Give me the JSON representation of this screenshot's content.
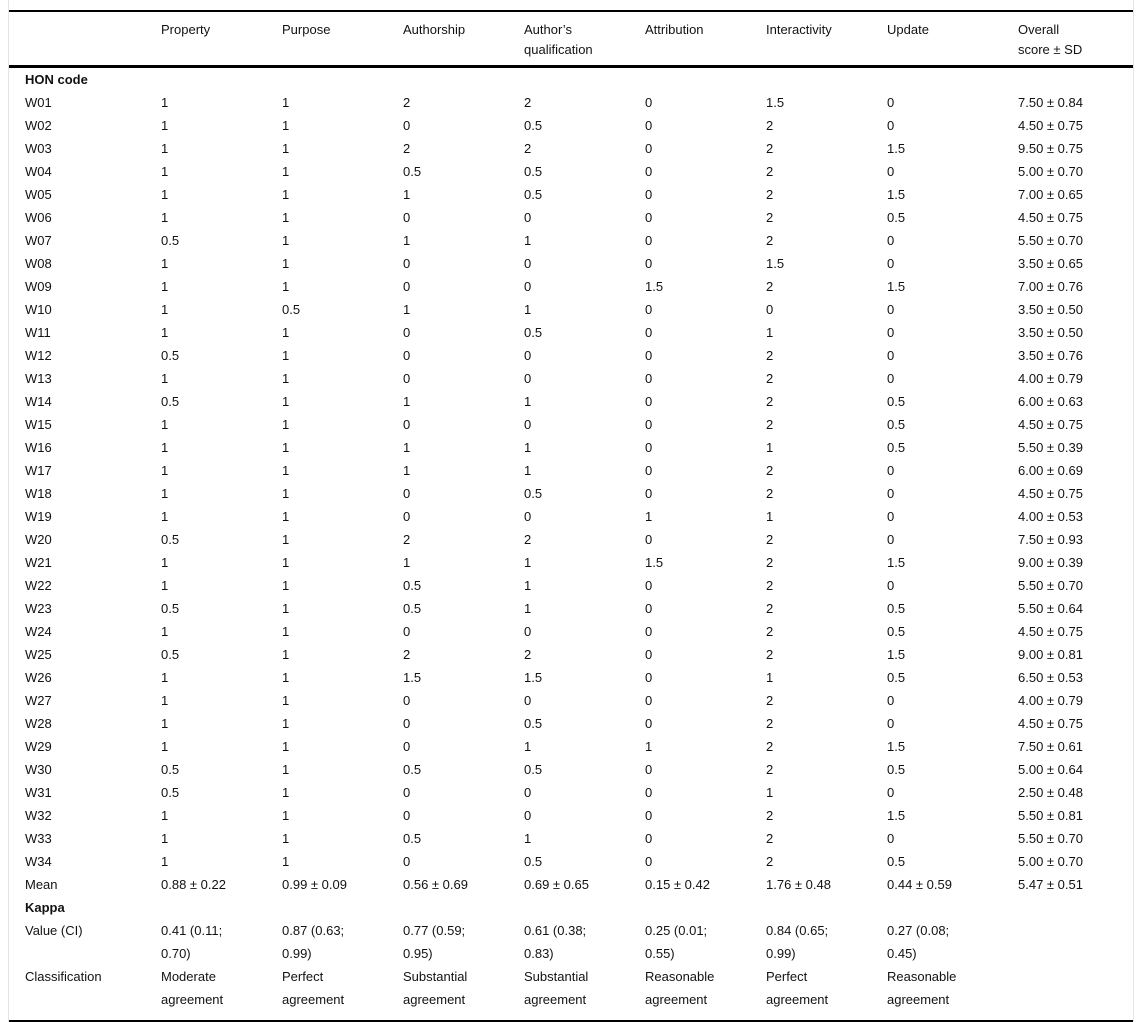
{
  "table": {
    "columns": [
      "Property",
      "Purpose",
      "Authorship",
      "Author’s\nqualification",
      "Attribution",
      "Interactivity",
      "Update",
      "Overall\nscore ± SD"
    ],
    "body": [
      {
        "type": "section",
        "label": "HON code"
      },
      {
        "type": "data",
        "label": "W01",
        "values": [
          "1",
          "1",
          "2",
          "2",
          "0",
          "1.5",
          "0",
          "7.50 ± 0.84"
        ]
      },
      {
        "type": "data",
        "label": "W02",
        "values": [
          "1",
          "1",
          "0",
          "0.5",
          "0",
          "2",
          "0",
          "4.50 ± 0.75"
        ]
      },
      {
        "type": "data",
        "label": "W03",
        "values": [
          "1",
          "1",
          "2",
          "2",
          "0",
          "2",
          "1.5",
          "9.50 ± 0.75"
        ]
      },
      {
        "type": "data",
        "label": "W04",
        "values": [
          "1",
          "1",
          "0.5",
          "0.5",
          "0",
          "2",
          "0",
          "5.00 ± 0.70"
        ]
      },
      {
        "type": "data",
        "label": "W05",
        "values": [
          "1",
          "1",
          "1",
          "0.5",
          "0",
          "2",
          "1.5",
          "7.00 ± 0.65"
        ]
      },
      {
        "type": "data",
        "label": "W06",
        "values": [
          "1",
          "1",
          "0",
          "0",
          "0",
          "2",
          "0.5",
          "4.50 ± 0.75"
        ]
      },
      {
        "type": "data",
        "label": "W07",
        "values": [
          "0.5",
          "1",
          "1",
          "1",
          "0",
          "2",
          "0",
          "5.50 ± 0.70"
        ]
      },
      {
        "type": "data",
        "label": "W08",
        "values": [
          "1",
          "1",
          "0",
          "0",
          "0",
          "1.5",
          "0",
          "3.50 ± 0.65"
        ]
      },
      {
        "type": "data",
        "label": "W09",
        "values": [
          "1",
          "1",
          "0",
          "0",
          "1.5",
          "2",
          "1.5",
          "7.00 ± 0.76"
        ]
      },
      {
        "type": "data",
        "label": "W10",
        "values": [
          "1",
          "0.5",
          "1",
          "1",
          "0",
          "0",
          "0",
          "3.50 ± 0.50"
        ]
      },
      {
        "type": "data",
        "label": "W11",
        "values": [
          "1",
          "1",
          "0",
          "0.5",
          "0",
          "1",
          "0",
          "3.50 ± 0.50"
        ]
      },
      {
        "type": "data",
        "label": "W12",
        "values": [
          "0.5",
          "1",
          "0",
          "0",
          "0",
          "2",
          "0",
          "3.50 ± 0.76"
        ]
      },
      {
        "type": "data",
        "label": "W13",
        "values": [
          "1",
          "1",
          "0",
          "0",
          "0",
          "2",
          "0",
          "4.00 ± 0.79"
        ]
      },
      {
        "type": "data",
        "label": "W14",
        "values": [
          "0.5",
          "1",
          "1",
          "1",
          "0",
          "2",
          "0.5",
          "6.00 ± 0.63"
        ]
      },
      {
        "type": "data",
        "label": "W15",
        "values": [
          "1",
          "1",
          "0",
          "0",
          "0",
          "2",
          "0.5",
          "4.50 ± 0.75"
        ]
      },
      {
        "type": "data",
        "label": "W16",
        "values": [
          "1",
          "1",
          "1",
          "1",
          "0",
          "1",
          "0.5",
          "5.50 ± 0.39"
        ]
      },
      {
        "type": "data",
        "label": "W17",
        "values": [
          "1",
          "1",
          "1",
          "1",
          "0",
          "2",
          "0",
          "6.00 ± 0.69"
        ]
      },
      {
        "type": "data",
        "label": "W18",
        "values": [
          "1",
          "1",
          "0",
          "0.5",
          "0",
          "2",
          "0",
          "4.50 ± 0.75"
        ]
      },
      {
        "type": "data",
        "label": "W19",
        "values": [
          "1",
          "1",
          "0",
          "0",
          "1",
          "1",
          "0",
          "4.00 ± 0.53"
        ]
      },
      {
        "type": "data",
        "label": "W20",
        "values": [
          "0.5",
          "1",
          "2",
          "2",
          "0",
          "2",
          "0",
          "7.50 ± 0.93"
        ]
      },
      {
        "type": "data",
        "label": "W21",
        "values": [
          "1",
          "1",
          "1",
          "1",
          "1.5",
          "2",
          "1.5",
          "9.00 ± 0.39"
        ]
      },
      {
        "type": "data",
        "label": "W22",
        "values": [
          "1",
          "1",
          "0.5",
          "1",
          "0",
          "2",
          "0",
          "5.50 ± 0.70"
        ]
      },
      {
        "type": "data",
        "label": "W23",
        "values": [
          "0.5",
          "1",
          "0.5",
          "1",
          "0",
          "2",
          "0.5",
          "5.50 ± 0.64"
        ]
      },
      {
        "type": "data",
        "label": "W24",
        "values": [
          "1",
          "1",
          "0",
          "0",
          "0",
          "2",
          "0.5",
          "4.50 ± 0.75"
        ]
      },
      {
        "type": "data",
        "label": "W25",
        "values": [
          "0.5",
          "1",
          "2",
          "2",
          "0",
          "2",
          "1.5",
          "9.00 ± 0.81"
        ]
      },
      {
        "type": "data",
        "label": "W26",
        "values": [
          "1",
          "1",
          "1.5",
          "1.5",
          "0",
          "1",
          "0.5",
          "6.50 ± 0.53"
        ]
      },
      {
        "type": "data",
        "label": "W27",
        "values": [
          "1",
          "1",
          "0",
          "0",
          "0",
          "2",
          "0",
          "4.00 ± 0.79"
        ]
      },
      {
        "type": "data",
        "label": "W28",
        "values": [
          "1",
          "1",
          "0",
          "0.5",
          "0",
          "2",
          "0",
          "4.50 ± 0.75"
        ]
      },
      {
        "type": "data",
        "label": "W29",
        "values": [
          "1",
          "1",
          "0",
          "1",
          "1",
          "2",
          "1.5",
          "7.50 ± 0.61"
        ]
      },
      {
        "type": "data",
        "label": "W30",
        "values": [
          "0.5",
          "1",
          "0.5",
          "0.5",
          "0",
          "2",
          "0.5",
          "5.00 ± 0.64"
        ]
      },
      {
        "type": "data",
        "label": "W31",
        "values": [
          "0.5",
          "1",
          "0",
          "0",
          "0",
          "1",
          "0",
          "2.50 ± 0.48"
        ]
      },
      {
        "type": "data",
        "label": "W32",
        "values": [
          "1",
          "1",
          "0",
          "0",
          "0",
          "2",
          "1.5",
          "5.50 ± 0.81"
        ]
      },
      {
        "type": "data",
        "label": "W33",
        "values": [
          "1",
          "1",
          "0.5",
          "1",
          "0",
          "2",
          "0",
          "5.50 ± 0.70"
        ]
      },
      {
        "type": "data",
        "label": "W34",
        "values": [
          "1",
          "1",
          "0",
          "0.5",
          "0",
          "2",
          "0.5",
          "5.00 ± 0.70"
        ]
      },
      {
        "type": "data",
        "label": "Mean",
        "values": [
          "0.88 ± 0.22",
          "0.99 ± 0.09",
          "0.56 ± 0.69",
          "0.69 ± 0.65",
          "0.15 ± 0.42",
          "1.76 ± 0.48",
          "0.44 ± 0.59",
          "5.47 ± 0.51"
        ]
      },
      {
        "type": "section",
        "label": "Kappa"
      },
      {
        "type": "data",
        "label": "Value (CI)",
        "values": [
          "0.41 (0.11;\n0.70)",
          "0.87 (0.63;\n0.99)",
          "0.77 (0.59;\n0.95)",
          "0.61 (0.38;\n0.83)",
          "0.25 (0.01;\n0.55)",
          "0.84 (0.65;\n0.99)",
          "0.27 (0.08;\n0.45)",
          ""
        ]
      },
      {
        "type": "data",
        "label": "Classification",
        "values": [
          "Moderate\nagreement",
          "Perfect\nagreement",
          "Substantial\nagreement",
          "Substantial\nagreement",
          "Reasonable\nagreement",
          "Perfect\nagreement",
          "Reasonable\nagreement",
          ""
        ]
      }
    ]
  }
}
